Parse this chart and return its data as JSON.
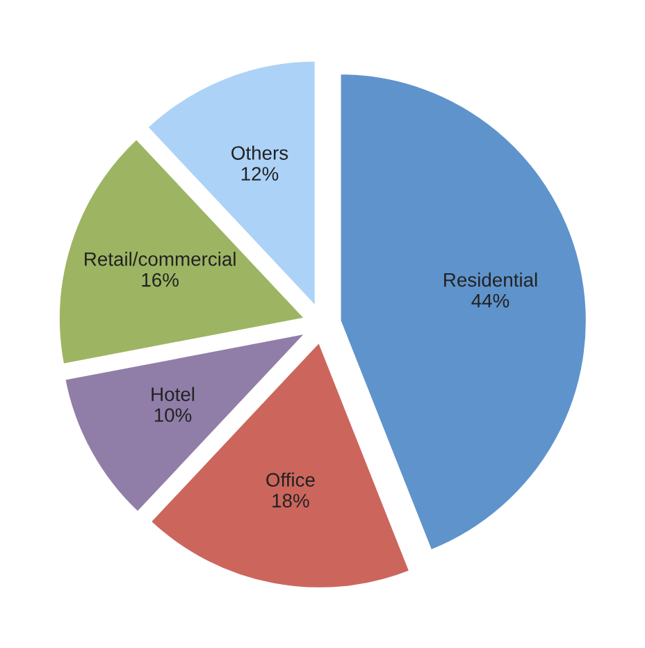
{
  "chart_data": {
    "type": "pie",
    "categories": [
      "Residential",
      "Office",
      "Hotel",
      "Retail/commercial",
      "Others"
    ],
    "values": [
      44,
      18,
      10,
      16,
      12
    ],
    "colors": [
      "#5f93cc",
      "#cc665c",
      "#907ea8",
      "#9db563",
      "#add2f7"
    ],
    "value_labels": [
      "44%",
      "18%",
      "10%",
      "16%",
      "12%"
    ],
    "legend": false
  }
}
